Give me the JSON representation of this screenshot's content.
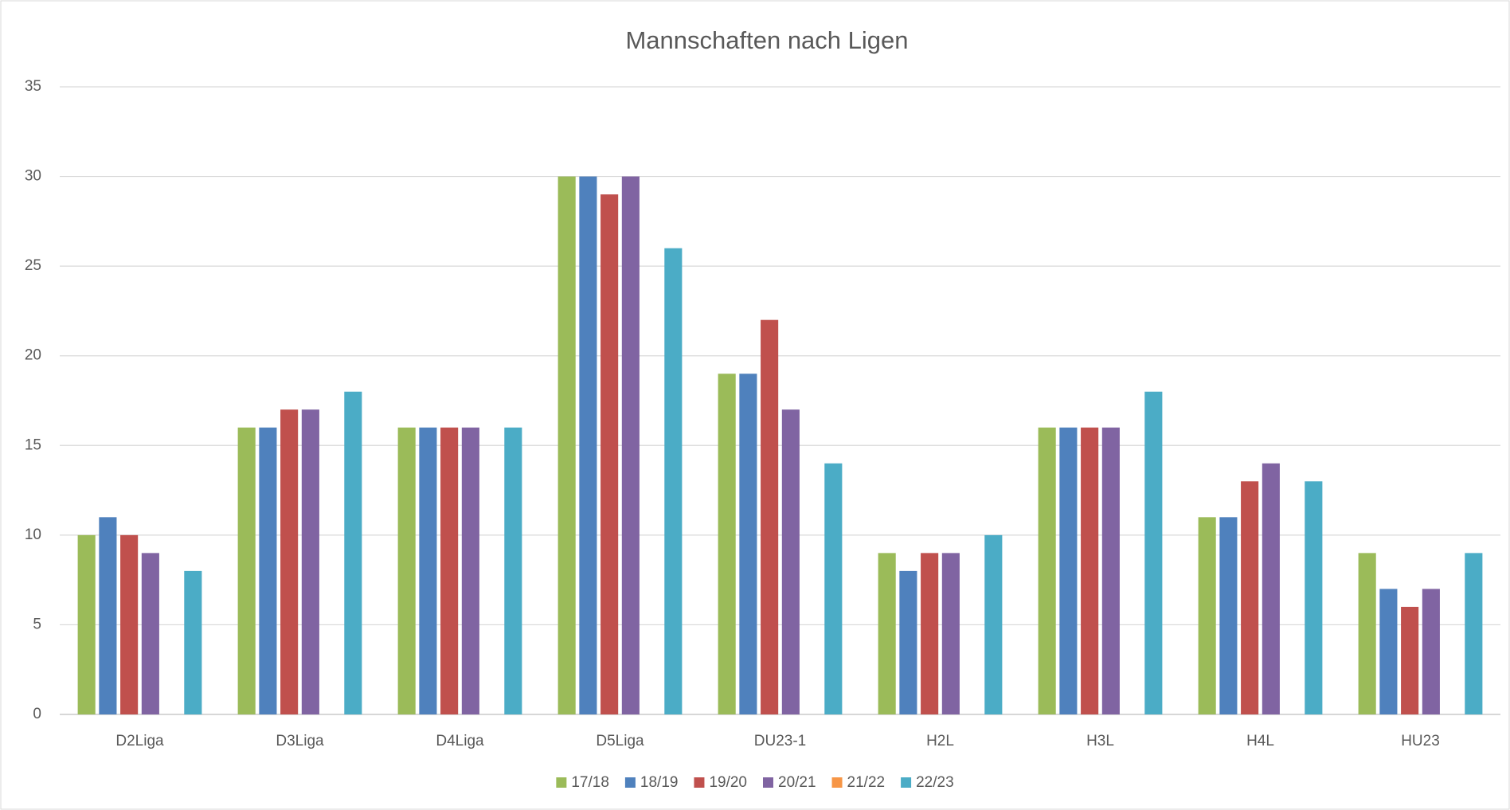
{
  "chart_data": {
    "type": "bar",
    "title": "Mannschaften nach Ligen",
    "categories": [
      "D2Liga",
      "D3Liga",
      "D4Liga",
      "D5Liga",
      "DU23-1",
      "H2L",
      "H3L",
      "H4L",
      "HU23"
    ],
    "series": [
      {
        "name": "17/18",
        "color": "#9bbb59",
        "values": [
          10,
          16,
          16,
          30,
          19,
          9,
          16,
          11,
          9
        ]
      },
      {
        "name": "18/19",
        "color": "#4f81bd",
        "values": [
          11,
          16,
          16,
          30,
          19,
          8,
          16,
          11,
          7
        ]
      },
      {
        "name": "19/20",
        "color": "#c0504d",
        "values": [
          10,
          17,
          16,
          29,
          22,
          9,
          16,
          13,
          6
        ]
      },
      {
        "name": "20/21",
        "color": "#8064a2",
        "values": [
          9,
          17,
          16,
          30,
          17,
          9,
          16,
          14,
          7
        ]
      },
      {
        "name": "21/22",
        "color": "#f79646",
        "values": [
          null,
          null,
          null,
          null,
          null,
          null,
          null,
          null,
          null
        ]
      },
      {
        "name": "22/23",
        "color": "#4bacc6",
        "values": [
          8,
          18,
          16,
          26,
          14,
          10,
          18,
          13,
          9
        ]
      }
    ],
    "ylim": [
      0,
      35
    ],
    "yticks": [
      0,
      5,
      10,
      15,
      20,
      25,
      30,
      35
    ],
    "grid": true,
    "legend": "bottom"
  }
}
